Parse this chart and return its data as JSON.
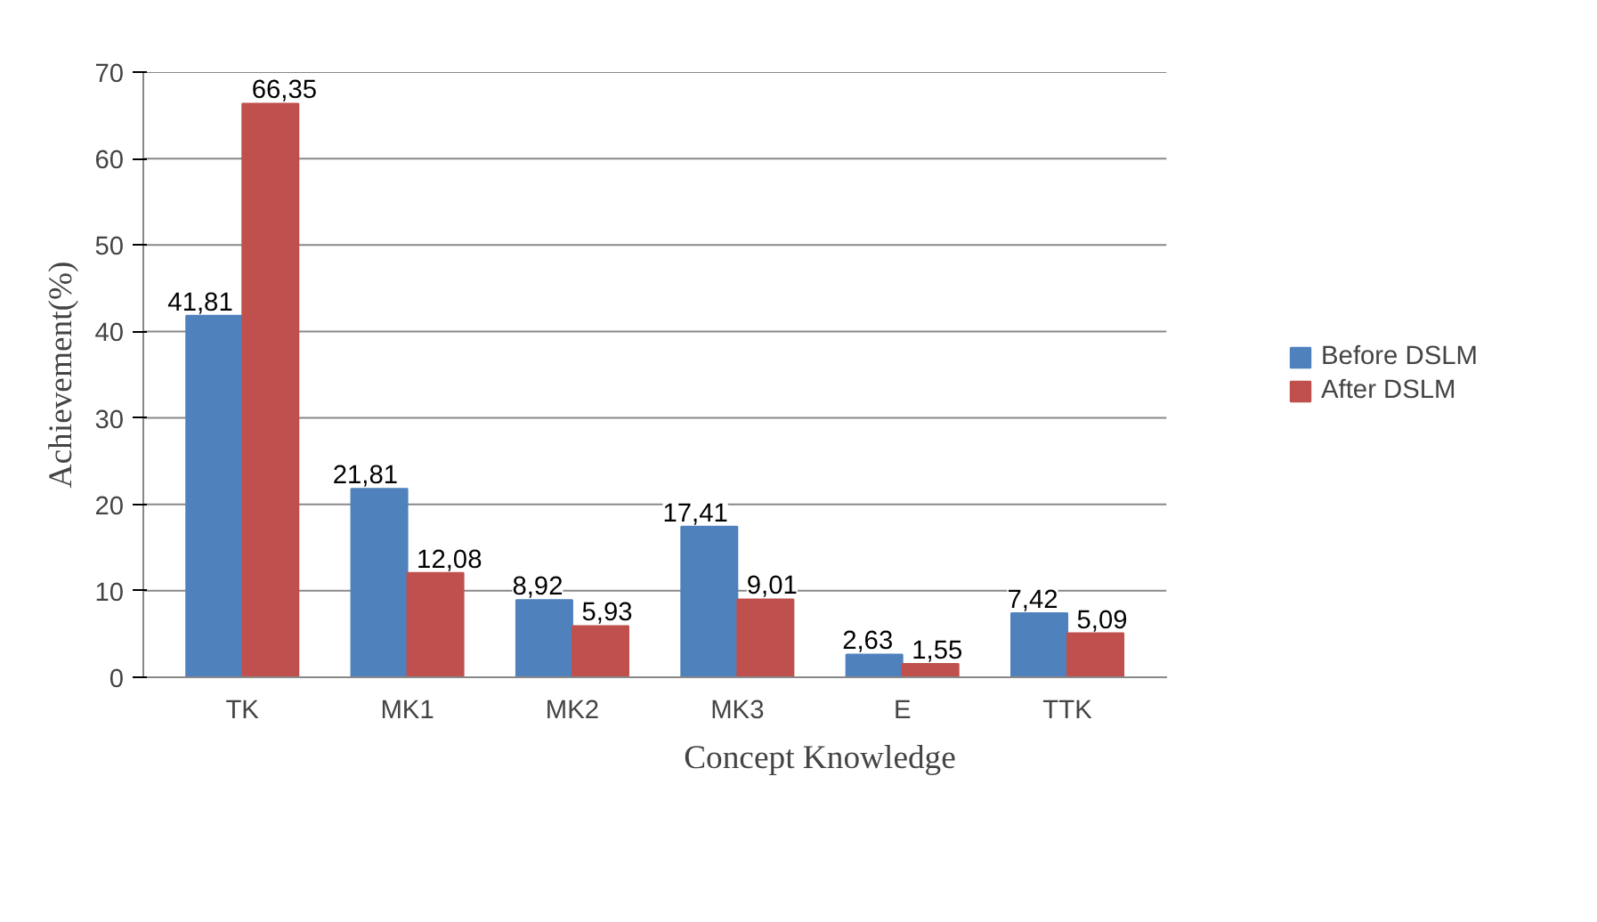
{
  "chart_data": {
    "type": "bar",
    "xlabel": "Concept Knowledge",
    "ylabel": "Achievement(%)",
    "categories": [
      "TK",
      "MK1",
      "MK2",
      "MK3",
      "E",
      "TTK"
    ],
    "series": [
      {
        "name": "Before DSLM",
        "color": "#4f81bd",
        "values": [
          41.81,
          21.81,
          8.92,
          17.41,
          2.63,
          7.42
        ],
        "value_labels": [
          "41,81",
          "21,81",
          "8,92",
          "17,41",
          "2,63",
          "7,42"
        ]
      },
      {
        "name": "After DSLM",
        "color": "#c0504d",
        "values": [
          66.35,
          12.08,
          5.93,
          9.01,
          1.55,
          5.09
        ],
        "value_labels": [
          "66,35",
          "12,08",
          "5,93",
          "9,01",
          "1,55",
          "5,09"
        ]
      }
    ],
    "ylim": [
      0,
      70
    ],
    "yticks": [
      0,
      10,
      20,
      30,
      40,
      50,
      60,
      70
    ],
    "grid": "y",
    "legend": "right"
  }
}
